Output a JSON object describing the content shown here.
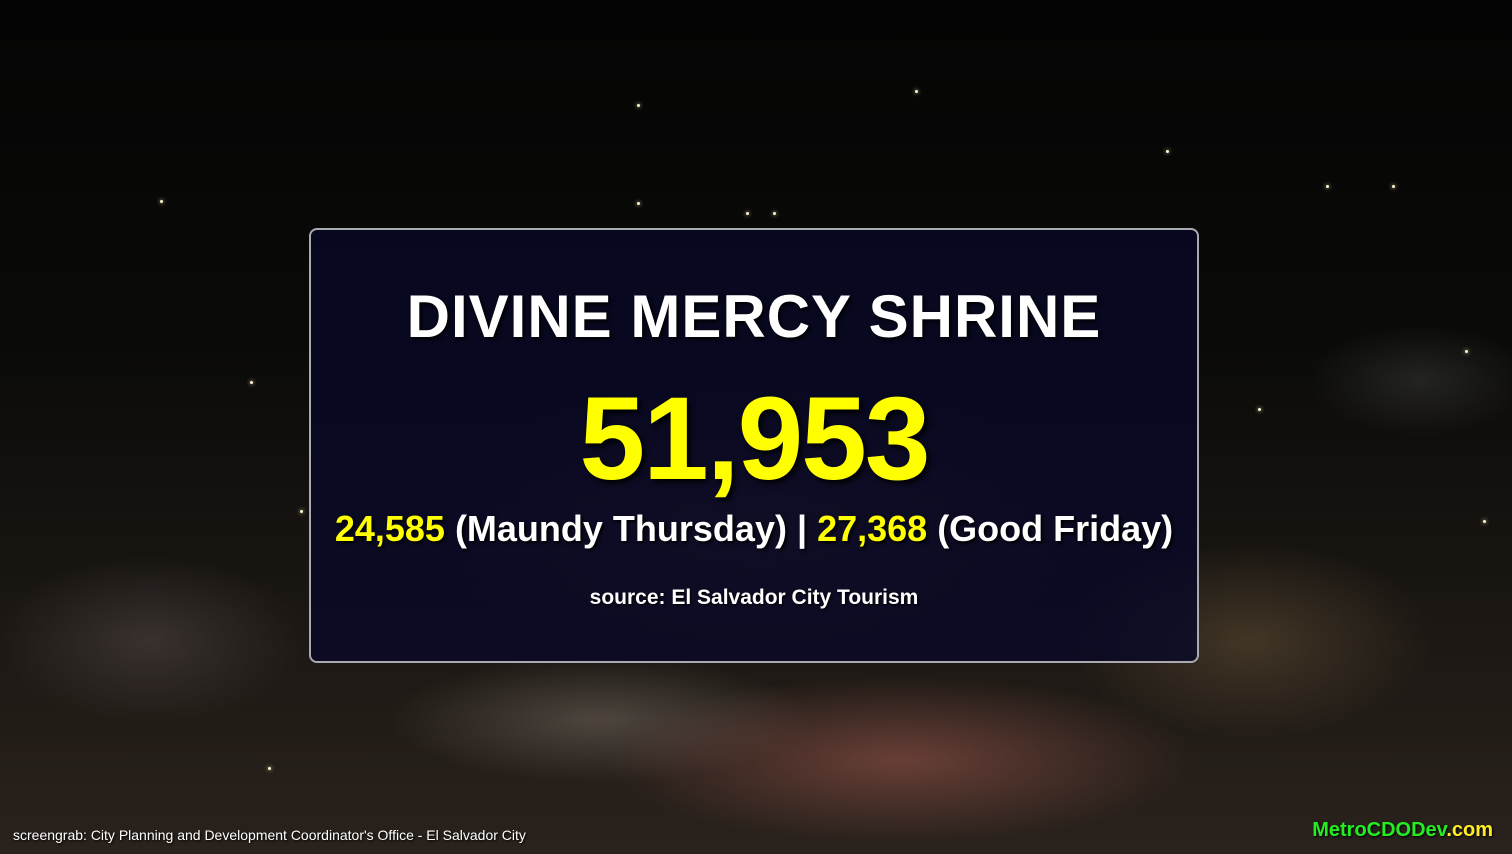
{
  "overlay": {
    "title": "DIVINE MERCY SHRINE",
    "total": "51,953",
    "breakdown": {
      "thursday_count": "24,585",
      "thursday_label": "(Maundy Thursday)",
      "separator": "|",
      "friday_count": "27,368",
      "friday_label": "(Good Friday)"
    },
    "source": "source: El Salvador City Tourism"
  },
  "credit": "screengrab: City Planning and Development Coordinator's Office - El Salvador City",
  "brand": {
    "name": "MetroCDODev",
    "tld": ".com"
  },
  "colors": {
    "highlight": "#ffff00",
    "brand_green": "#22ee22",
    "panel": "#080828"
  }
}
